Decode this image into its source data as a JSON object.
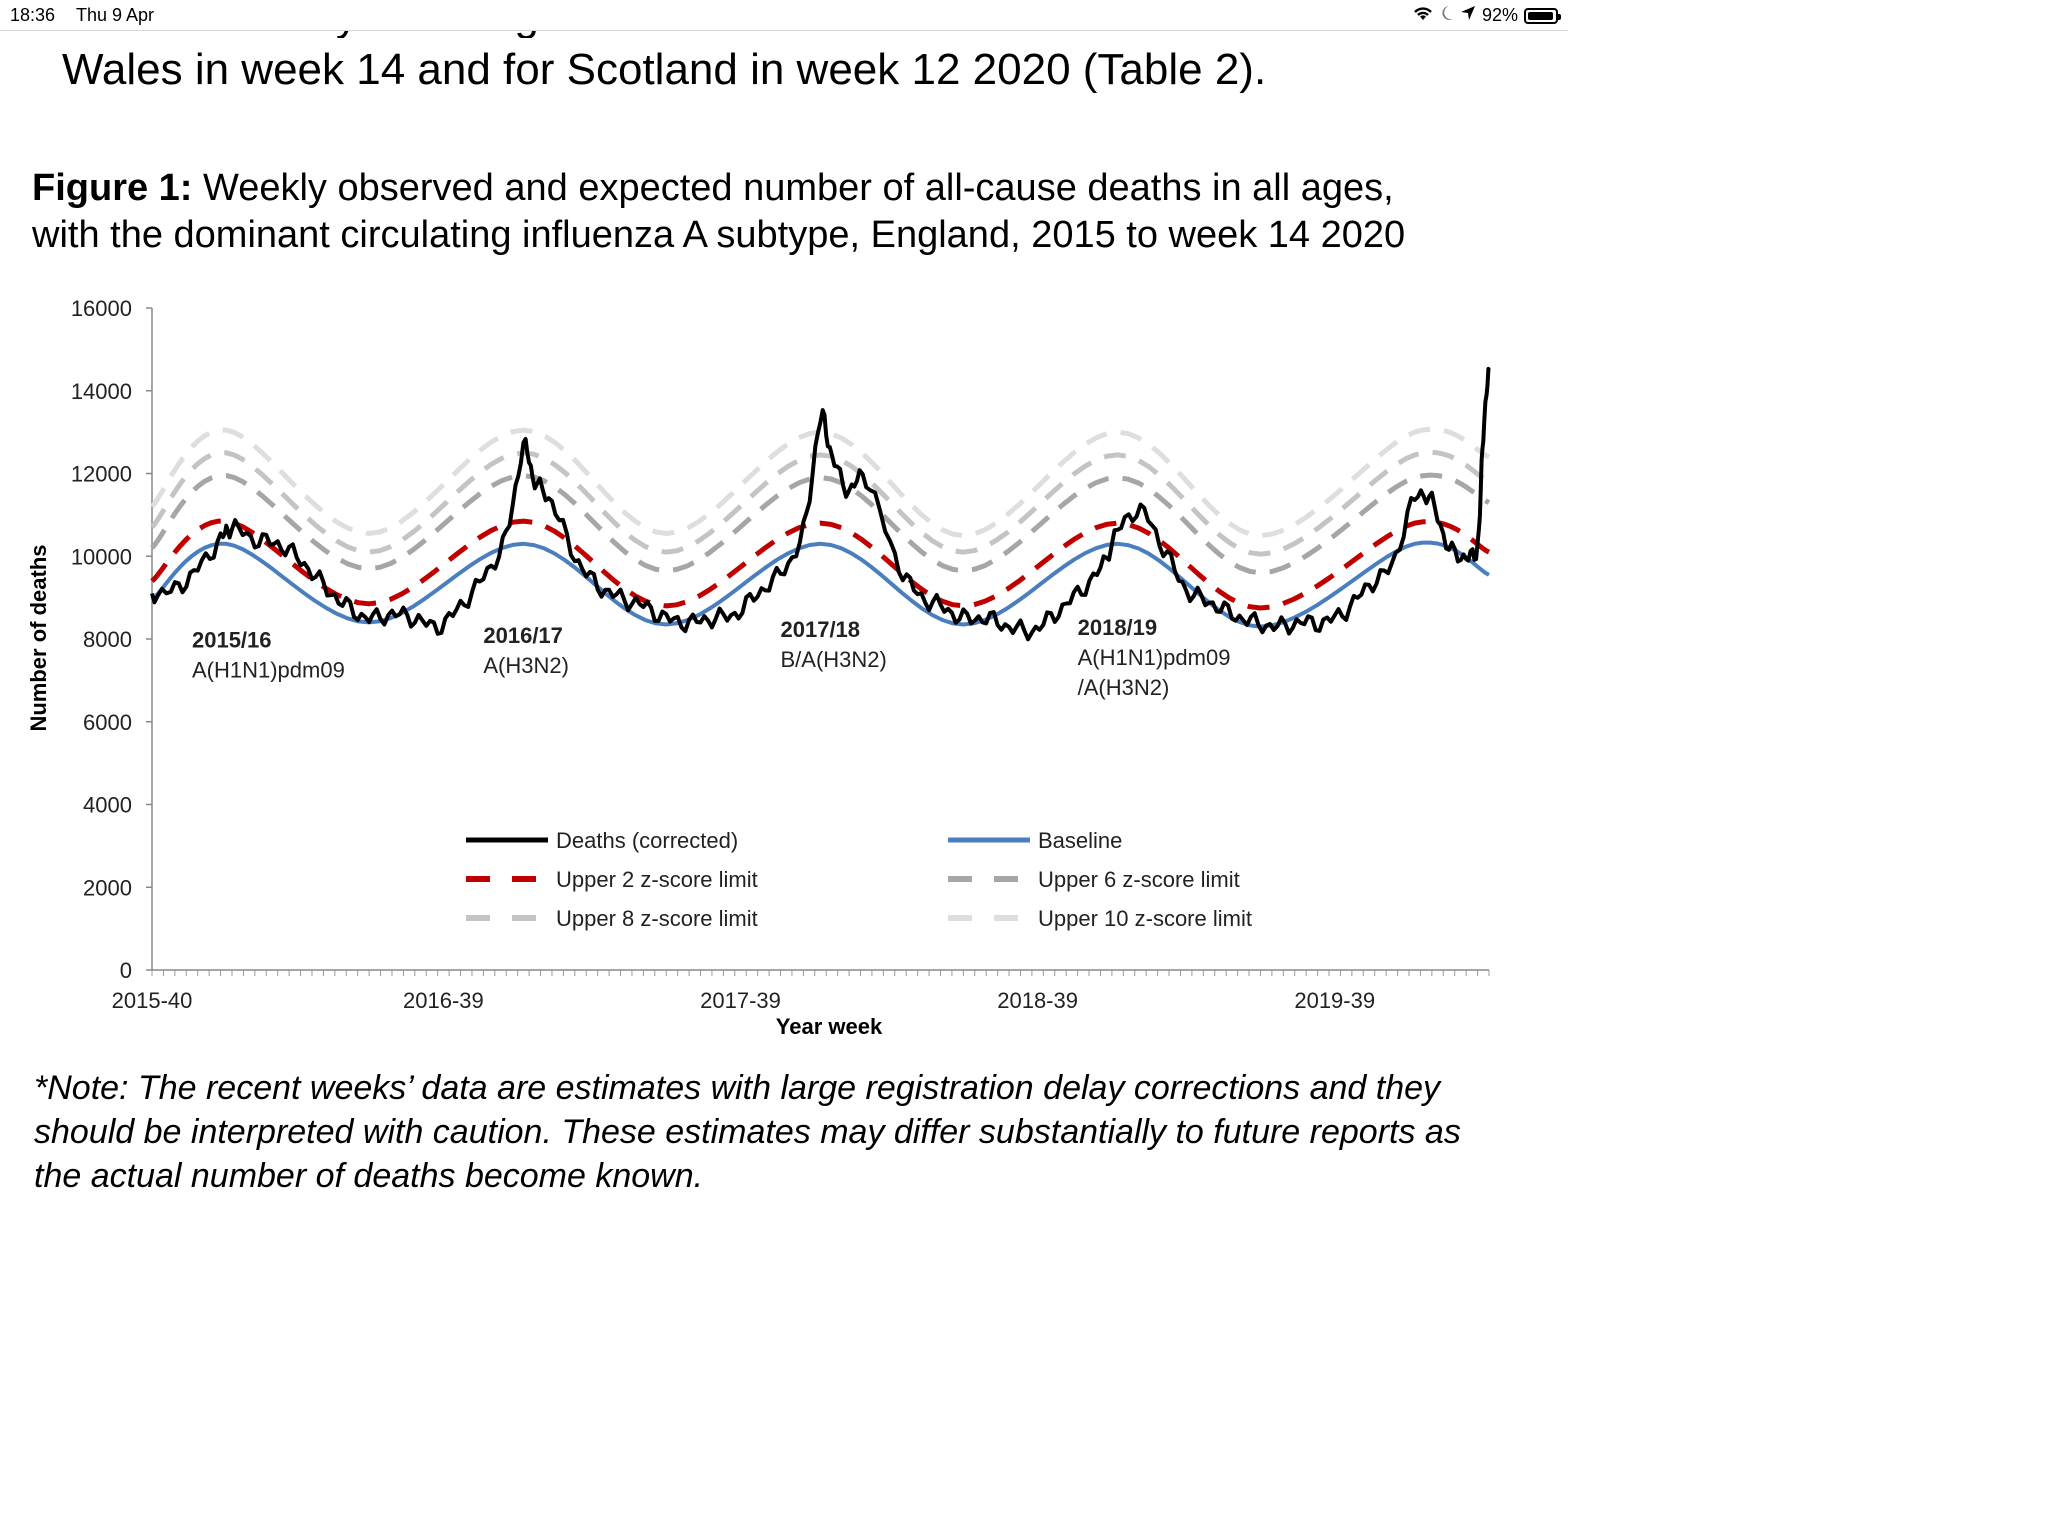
{
  "status_bar": {
    "time": "18:36",
    "date": "Thu 9 Apr",
    "battery": "92%"
  },
  "document": {
    "intro_line_cut": "cause mortality for all ages was observed for Northern Ireland and",
    "intro_line": "Wales in week 14 and for Scotland in week 12 2020 (Table 2).",
    "figure_label": "Figure 1:",
    "figure_caption_1": " Weekly observed and expected number of all-cause deaths in all ages,",
    "figure_caption_2": "with the dominant circulating influenza A subtype, England, 2015 to week 14 2020",
    "note_1": "*Note: The recent weeks’ data are estimates with large registration delay corrections and they",
    "note_2": "should be interpreted with caution. These estimates may differ substantially to future reports as",
    "note_3": "the actual number of deaths become known."
  },
  "chart_data": {
    "type": "line",
    "title": "",
    "xlabel": "Year week",
    "ylabel": "Number of deaths",
    "ylim": [
      0,
      16000
    ],
    "yticks": [
      0,
      2000,
      4000,
      6000,
      8000,
      10000,
      12000,
      14000,
      16000
    ],
    "ytick_labels": [
      "0",
      "2000",
      "4000",
      "6000",
      "8000",
      "10000",
      "12000",
      "14000",
      "16000"
    ],
    "x_range": [
      "2015-40",
      "2020-14"
    ],
    "x_tick_labels": [
      "2015-40",
      "2016-39",
      "2017-39",
      "2018-39",
      "2019-39"
    ],
    "grid": false,
    "legend_position": "bottom-center",
    "series": [
      {
        "name": "Deaths (corrected)",
        "color": "#000000",
        "style": "solid",
        "points": [
          [
            "2015-40",
            9100
          ],
          [
            "2015-44",
            9200
          ],
          [
            "2015-48",
            9700
          ],
          [
            "2015-52",
            10400
          ],
          [
            "2016-02",
            10700
          ],
          [
            "2016-06",
            10400
          ],
          [
            "2016-10",
            10300
          ],
          [
            "2016-14",
            9900
          ],
          [
            "2016-18",
            9300
          ],
          [
            "2016-22",
            8800
          ],
          [
            "2016-26",
            8500
          ],
          [
            "2016-30",
            8600
          ],
          [
            "2016-34",
            8500
          ],
          [
            "2016-38",
            8300
          ],
          [
            "2016-42",
            8800
          ],
          [
            "2016-46",
            9500
          ],
          [
            "2016-50",
            10500
          ],
          [
            "2017-01",
            12600
          ],
          [
            "2017-03",
            11800
          ],
          [
            "2017-06",
            11300
          ],
          [
            "2017-10",
            10000
          ],
          [
            "2017-14",
            9300
          ],
          [
            "2017-18",
            9000
          ],
          [
            "2017-22",
            8800
          ],
          [
            "2017-26",
            8500
          ],
          [
            "2017-30",
            8400
          ],
          [
            "2017-34",
            8500
          ],
          [
            "2017-38",
            8600
          ],
          [
            "2017-42",
            9100
          ],
          [
            "2017-46",
            9600
          ],
          [
            "2017-50",
            10600
          ],
          [
            "2018-01",
            13300
          ],
          [
            "2018-03",
            12400
          ],
          [
            "2018-06",
            11600
          ],
          [
            "2018-09",
            11900
          ],
          [
            "2018-14",
            10000
          ],
          [
            "2018-18",
            9100
          ],
          [
            "2018-22",
            8800
          ],
          [
            "2018-26",
            8500
          ],
          [
            "2018-30",
            8500
          ],
          [
            "2018-34",
            8300
          ],
          [
            "2018-38",
            8200
          ],
          [
            "2018-42",
            8600
          ],
          [
            "2018-46",
            9100
          ],
          [
            "2018-50",
            9700
          ],
          [
            "2019-01",
            10600
          ],
          [
            "2019-05",
            11100
          ],
          [
            "2019-09",
            10200
          ],
          [
            "2019-13",
            9200
          ],
          [
            "2019-17",
            8900
          ],
          [
            "2019-21",
            8600
          ],
          [
            "2019-25",
            8400
          ],
          [
            "2019-29",
            8300
          ],
          [
            "2019-33",
            8400
          ],
          [
            "2019-37",
            8400
          ],
          [
            "2019-41",
            8700
          ],
          [
            "2019-45",
            9300
          ],
          [
            "2019-49",
            9800
          ],
          [
            "2020-01",
            11400
          ],
          [
            "2020-04",
            11300
          ],
          [
            "2020-07",
            10200
          ],
          [
            "2020-10",
            10000
          ],
          [
            "2020-12",
            10300
          ],
          [
            "2020-13",
            13000
          ],
          [
            "2020-14",
            14500
          ]
        ]
      },
      {
        "name": "Baseline",
        "color": "#4a7ebf",
        "style": "solid",
        "points": [
          [
            "2015-40",
            8950
          ],
          [
            "2016-01",
            10300
          ],
          [
            "2016-26",
            8400
          ],
          [
            "2017-01",
            10300
          ],
          [
            "2017-26",
            8350
          ],
          [
            "2018-01",
            10300
          ],
          [
            "2018-26",
            8350
          ],
          [
            "2019-01",
            10300
          ],
          [
            "2019-26",
            8300
          ],
          [
            "2020-01",
            10300
          ],
          [
            "2020-14",
            9550
          ]
        ]
      },
      {
        "name": "Upper 2 z-score limit",
        "color": "#c00000",
        "style": "dashed",
        "points": [
          [
            "2015-40",
            9400
          ],
          [
            "2016-01",
            10850
          ],
          [
            "2016-26",
            8850
          ],
          [
            "2017-01",
            10850
          ],
          [
            "2017-26",
            8800
          ],
          [
            "2018-01",
            10800
          ],
          [
            "2018-26",
            8800
          ],
          [
            "2019-01",
            10800
          ],
          [
            "2019-26",
            8750
          ],
          [
            "2020-01",
            10800
          ],
          [
            "2020-14",
            10100
          ]
        ]
      },
      {
        "name": "Upper 6 z-score limit",
        "color": "#a6a6a6",
        "style": "dashed",
        "points": [
          [
            "2015-40",
            10200
          ],
          [
            "2016-01",
            11950
          ],
          [
            "2016-26",
            9700
          ],
          [
            "2017-01",
            11950
          ],
          [
            "2017-26",
            9650
          ],
          [
            "2018-01",
            11900
          ],
          [
            "2018-26",
            9650
          ],
          [
            "2019-01",
            11900
          ],
          [
            "2019-26",
            9600
          ],
          [
            "2020-01",
            11900
          ],
          [
            "2020-14",
            11300
          ]
        ]
      },
      {
        "name": "Upper 8 z-score limit",
        "color": "#c4c4c4",
        "style": "dashed",
        "points": [
          [
            "2015-40",
            10700
          ],
          [
            "2016-01",
            12500
          ],
          [
            "2016-26",
            10100
          ],
          [
            "2017-01",
            12500
          ],
          [
            "2017-26",
            10100
          ],
          [
            "2018-01",
            12450
          ],
          [
            "2018-26",
            10100
          ],
          [
            "2019-01",
            12450
          ],
          [
            "2019-26",
            10050
          ],
          [
            "2020-01",
            12450
          ],
          [
            "2020-14",
            11800
          ]
        ]
      },
      {
        "name": "Upper 10 z-score limit",
        "color": "#dedede",
        "style": "dashed",
        "points": [
          [
            "2015-40",
            11200
          ],
          [
            "2016-01",
            13050
          ],
          [
            "2016-26",
            10550
          ],
          [
            "2017-01",
            13050
          ],
          [
            "2017-26",
            10550
          ],
          [
            "2018-01",
            13000
          ],
          [
            "2018-26",
            10500
          ],
          [
            "2019-01",
            13000
          ],
          [
            "2019-26",
            10500
          ],
          [
            "2020-01",
            13000
          ],
          [
            "2020-14",
            12400
          ]
        ]
      }
    ],
    "annotations": [
      {
        "season": "2015/16",
        "subtype": "A(H1N1)pdm09",
        "week": "2016-02",
        "y": 7800
      },
      {
        "season": "2016/17",
        "subtype": "A(H3N2)",
        "week": "2017-01",
        "y": 7900
      },
      {
        "season": "2017/18",
        "subtype": "B/A(H3N2)",
        "week": "2018-01",
        "y": 8050
      },
      {
        "season": "2018/19",
        "subtype": "A(H1N1)pdm09",
        "subtype_2": "/A(H3N2)",
        "week": "2019-01",
        "y": 8100
      }
    ]
  }
}
